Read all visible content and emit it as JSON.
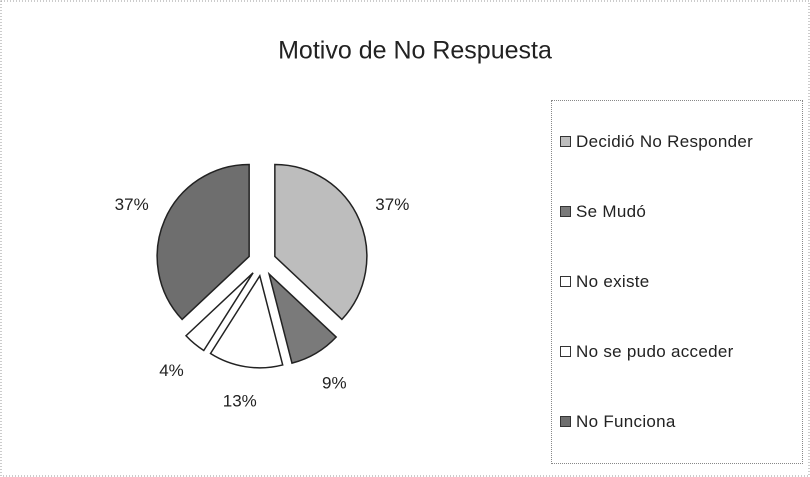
{
  "chart_data": {
    "type": "pie",
    "title": "Motivo de No Respuesta",
    "categories": [
      "Decidió No Responder",
      "Se Mudó",
      "No existe",
      "No se pudo acceder",
      "No Funciona"
    ],
    "values": [
      37,
      9,
      13,
      4,
      37
    ],
    "value_labels": [
      "37%",
      "9%",
      "13%",
      "4%",
      "37%"
    ],
    "colors": [
      "#bdbdbd",
      "#7a7a7a",
      "#ffffff",
      "#ffffff",
      "#6e6e6e"
    ],
    "legend": "right"
  }
}
